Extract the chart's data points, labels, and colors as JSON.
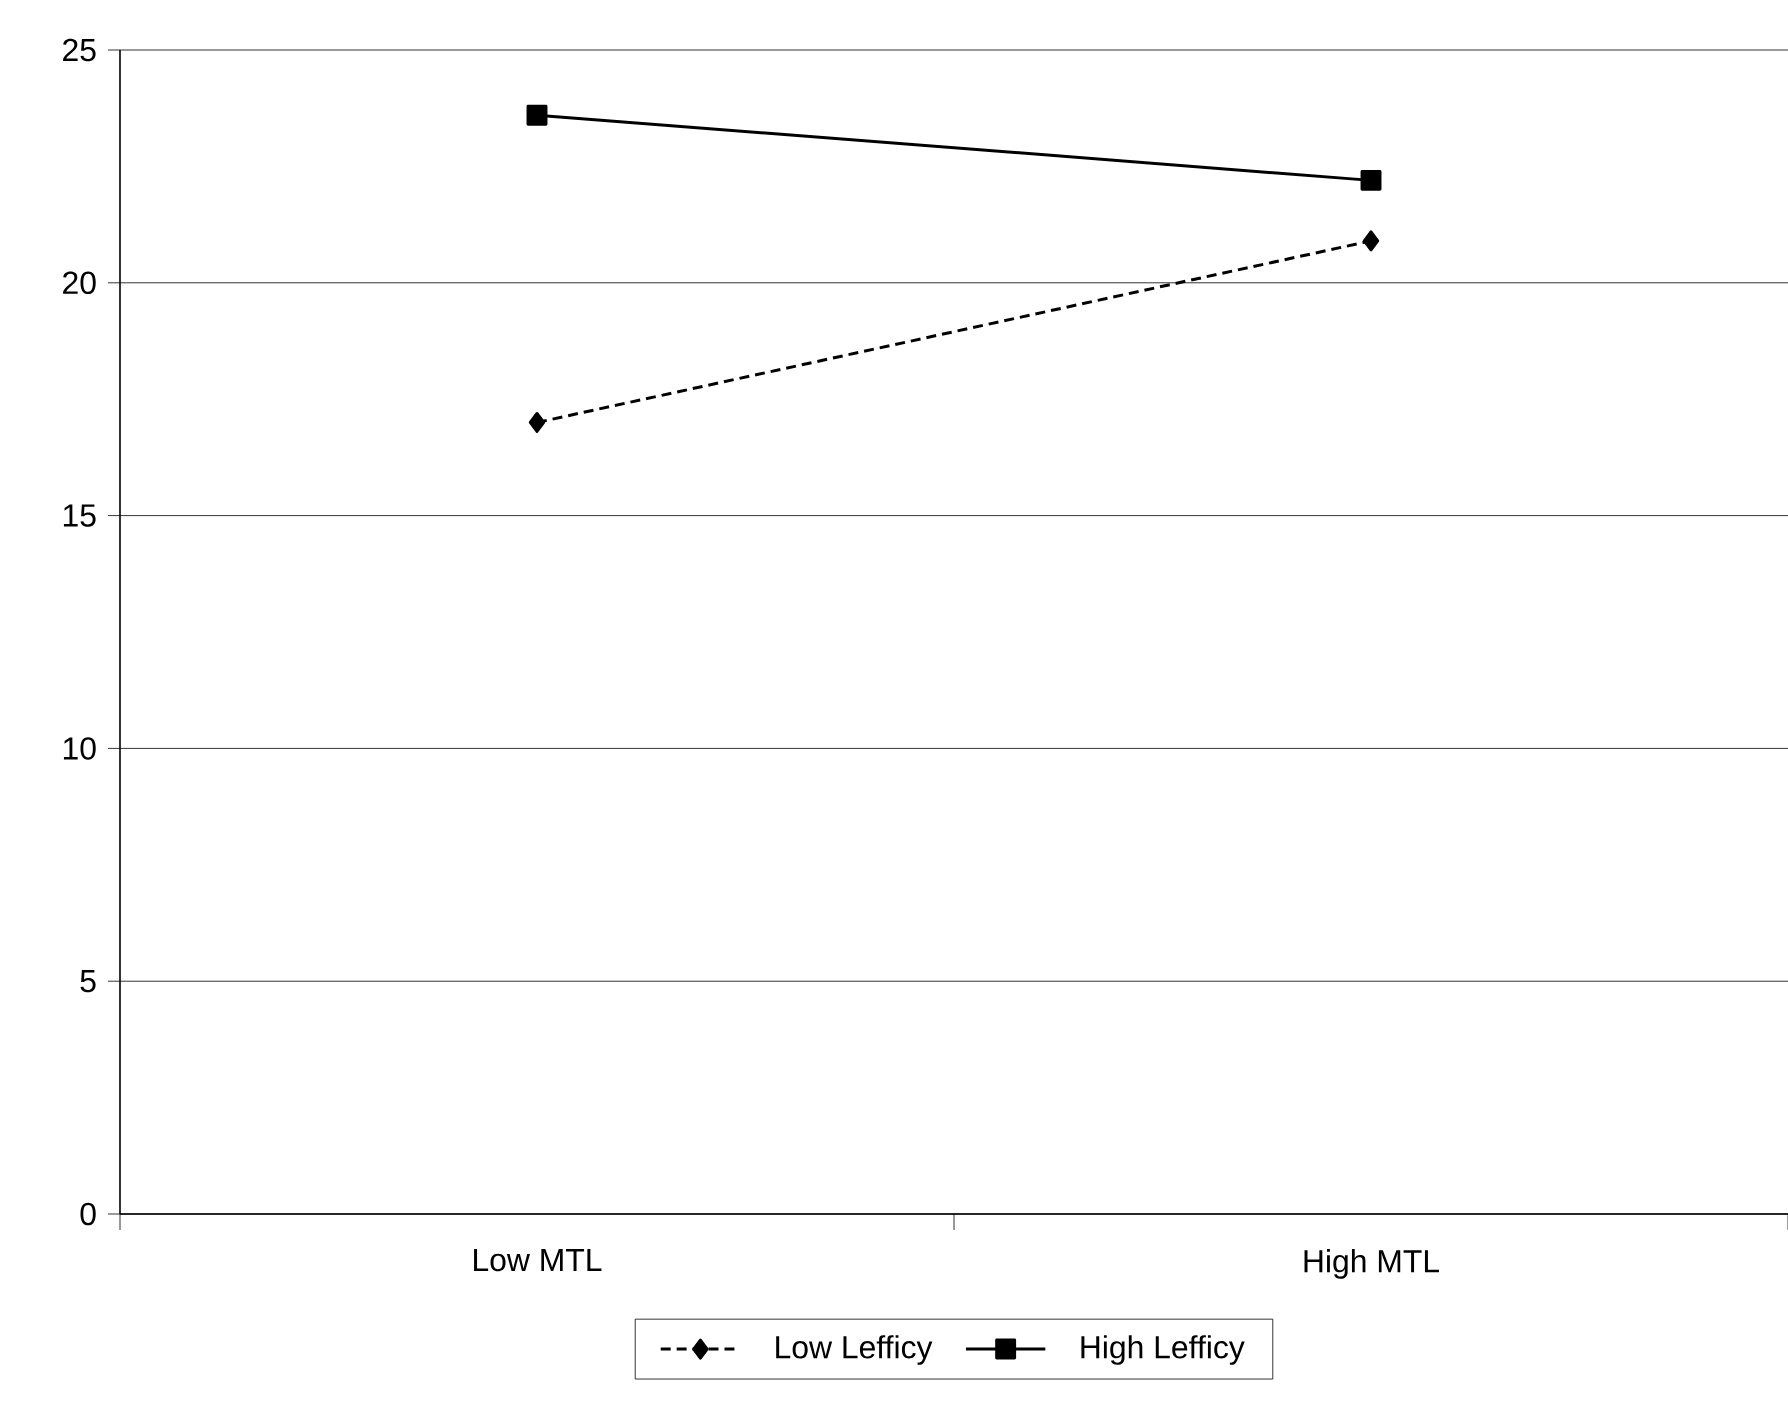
{
  "chart_data": {
    "type": "line",
    "categories": [
      "Low MTL",
      "High MTL"
    ],
    "series": [
      {
        "name": "Low Lefficy",
        "color": "#000000",
        "values": [
          17.0,
          20.9
        ],
        "marker": "diamond",
        "line_style": "dashed"
      },
      {
        "name": "High Lefficy",
        "color": "#000000",
        "values": [
          23.6,
          22.2
        ],
        "marker": "square",
        "line_style": "solid"
      }
    ],
    "ylim": [
      0,
      25
    ],
    "yticks": [
      0,
      5,
      10,
      15,
      20,
      25
    ],
    "grid": "y",
    "legend": "bottom"
  }
}
